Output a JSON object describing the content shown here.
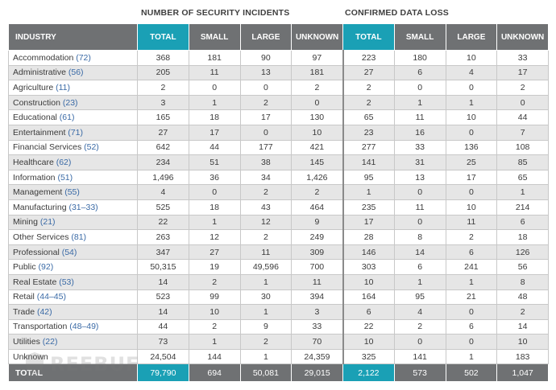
{
  "titles": {
    "incidents": "NUMBER OF SECURITY INCIDENTS",
    "dataloss": "CONFIRMED DATA LOSS"
  },
  "headers": [
    "INDUSTRY",
    "TOTAL",
    "SMALL",
    "LARGE",
    "UNKNOWN",
    "TOTAL",
    "SMALL",
    "LARGE",
    "UNKNOWN"
  ],
  "rows": [
    {
      "name": "Accommodation",
      "code": "(72)",
      "values": [
        "368",
        "181",
        "90",
        "97",
        "223",
        "180",
        "10",
        "33"
      ]
    },
    {
      "name": "Administrative",
      "code": "(56)",
      "values": [
        "205",
        "11",
        "13",
        "181",
        "27",
        "6",
        "4",
        "17"
      ]
    },
    {
      "name": "Agriculture",
      "code": "(11)",
      "values": [
        "2",
        "0",
        "0",
        "2",
        "2",
        "0",
        "0",
        "2"
      ]
    },
    {
      "name": "Construction",
      "code": "(23)",
      "values": [
        "3",
        "1",
        "2",
        "0",
        "2",
        "1",
        "1",
        "0"
      ]
    },
    {
      "name": "Educational",
      "code": "(61)",
      "values": [
        "165",
        "18",
        "17",
        "130",
        "65",
        "11",
        "10",
        "44"
      ]
    },
    {
      "name": "Entertainment",
      "code": "(71)",
      "values": [
        "27",
        "17",
        "0",
        "10",
        "23",
        "16",
        "0",
        "7"
      ]
    },
    {
      "name": "Financial Services",
      "code": "(52)",
      "values": [
        "642",
        "44",
        "177",
        "421",
        "277",
        "33",
        "136",
        "108"
      ]
    },
    {
      "name": "Healthcare",
      "code": "(62)",
      "values": [
        "234",
        "51",
        "38",
        "145",
        "141",
        "31",
        "25",
        "85"
      ]
    },
    {
      "name": "Information",
      "code": "(51)",
      "values": [
        "1,496",
        "36",
        "34",
        "1,426",
        "95",
        "13",
        "17",
        "65"
      ]
    },
    {
      "name": "Management",
      "code": "(55)",
      "values": [
        "4",
        "0",
        "2",
        "2",
        "1",
        "0",
        "0",
        "1"
      ]
    },
    {
      "name": "Manufacturing",
      "code": "(31–33)",
      "values": [
        "525",
        "18",
        "43",
        "464",
        "235",
        "11",
        "10",
        "214"
      ]
    },
    {
      "name": "Mining",
      "code": "(21)",
      "values": [
        "22",
        "1",
        "12",
        "9",
        "17",
        "0",
        "11",
        "6"
      ]
    },
    {
      "name": "Other Services",
      "code": "(81)",
      "values": [
        "263",
        "12",
        "2",
        "249",
        "28",
        "8",
        "2",
        "18"
      ]
    },
    {
      "name": "Professional",
      "code": "(54)",
      "values": [
        "347",
        "27",
        "11",
        "309",
        "146",
        "14",
        "6",
        "126"
      ]
    },
    {
      "name": "Public",
      "code": "(92)",
      "values": [
        "50,315",
        "19",
        "49,596",
        "700",
        "303",
        "6",
        "241",
        "56"
      ]
    },
    {
      "name": "Real Estate",
      "code": "(53)",
      "values": [
        "14",
        "2",
        "1",
        "11",
        "10",
        "1",
        "1",
        "8"
      ]
    },
    {
      "name": "Retail",
      "code": "(44–45)",
      "values": [
        "523",
        "99",
        "30",
        "394",
        "164",
        "95",
        "21",
        "48"
      ]
    },
    {
      "name": "Trade",
      "code": "(42)",
      "values": [
        "14",
        "10",
        "1",
        "3",
        "6",
        "4",
        "0",
        "2"
      ]
    },
    {
      "name": "Transportation",
      "code": "(48–49)",
      "values": [
        "44",
        "2",
        "9",
        "33",
        "22",
        "2",
        "6",
        "14"
      ]
    },
    {
      "name": "Utilities",
      "code": "(22)",
      "values": [
        "73",
        "1",
        "2",
        "70",
        "10",
        "0",
        "0",
        "10"
      ]
    },
    {
      "name": "Unknown",
      "code": "",
      "values": [
        "24,504",
        "144",
        "1",
        "24,359",
        "325",
        "141",
        "1",
        "183"
      ]
    }
  ],
  "total_row": {
    "label": "TOTAL",
    "values": [
      "79,790",
      "694",
      "50,081",
      "29,015",
      "2,122",
      "573",
      "502",
      "1,047"
    ]
  },
  "watermark": {
    "text": "REEBUF",
    "icon": "shield-icon"
  },
  "colors": {
    "header_gray": "#6f7173",
    "total_teal": "#1aa0b5",
    "stripe_gray": "#e6e6e6",
    "naics_blue": "#3a6aa6"
  }
}
